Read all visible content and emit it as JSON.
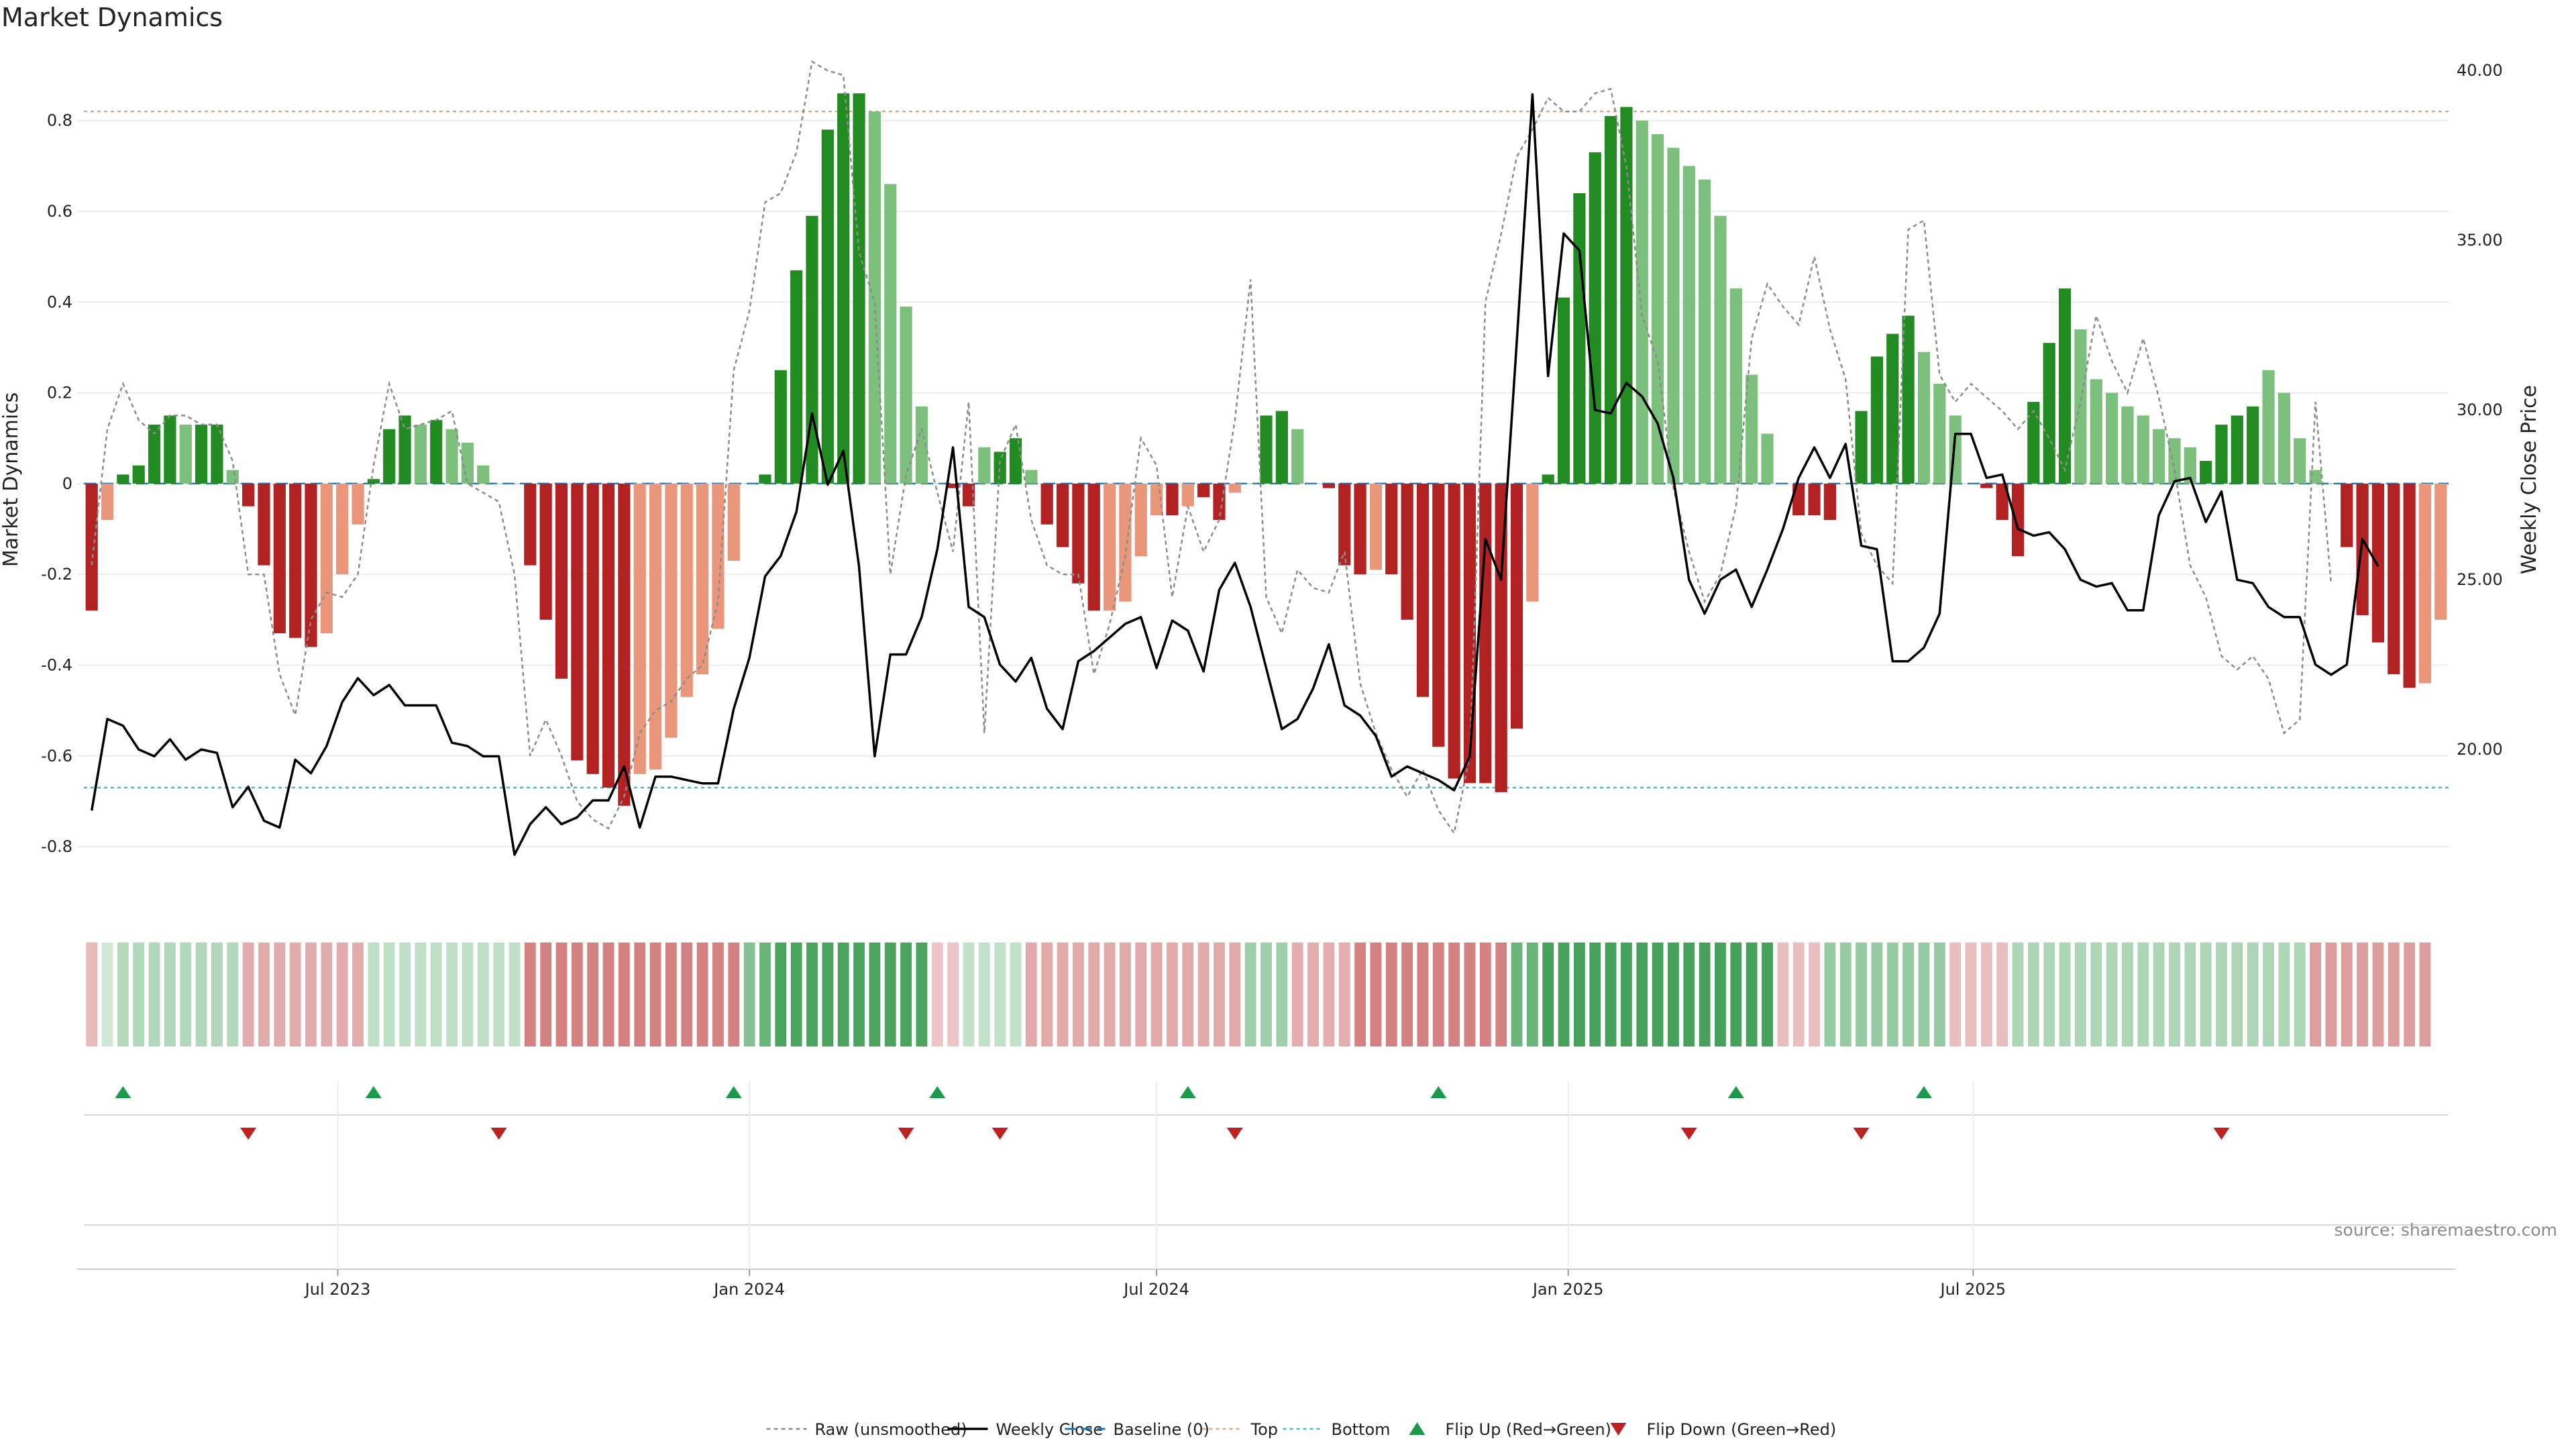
{
  "title": "Market Dynamics",
  "source": "source: sharemaestro.com",
  "colors": {
    "strong_green": "#228B22",
    "light_green": "#7DBF7D",
    "strong_red": "#B22222",
    "light_red": "#E9967A",
    "raw_line": "#8c8c8c",
    "close_line": "#000000",
    "baseline": "#1f77b4",
    "top_line": "#e8a27c",
    "bottom_line": "#40c0c8",
    "flip_up": "#1a9a4a",
    "flip_down": "#c02020"
  },
  "chart_data": {
    "type": "bar+line",
    "x_start": "2023-03-13",
    "interval": "weekly",
    "left_axis": {
      "label": "Market Dynamics",
      "ylim": [
        -0.93,
        0.94
      ],
      "ticks": [
        -0.8,
        -0.6,
        -0.4,
        -0.2,
        0,
        0.2,
        0.4,
        0.6,
        0.8
      ]
    },
    "right_axis": {
      "label": "Weekly Close Price",
      "ylim": [
        15.4,
        40.4
      ],
      "ticks": [
        "20.00",
        "25.00",
        "30.00",
        "35.00",
        "40.00"
      ]
    },
    "x_ticks": [
      "Jul 2023",
      "Jan 2024",
      "Jul 2024",
      "Jan 2025",
      "Jul 2025"
    ],
    "top_level": 0.82,
    "bottom_level": -0.67,
    "baseline_level": 0,
    "bars": [
      -0.28,
      -0.08,
      0.02,
      0.04,
      0.13,
      0.15,
      0.13,
      0.13,
      0.13,
      0.03,
      -0.05,
      -0.18,
      -0.33,
      -0.34,
      -0.36,
      -0.33,
      -0.2,
      -0.09,
      0.01,
      0.12,
      0.15,
      0.13,
      0.14,
      0.12,
      0.09,
      0.04,
      0,
      0,
      -0.18,
      -0.3,
      -0.43,
      -0.61,
      -0.64,
      -0.67,
      -0.71,
      -0.64,
      -0.63,
      -0.56,
      -0.47,
      -0.42,
      -0.32,
      -0.17,
      0,
      0.02,
      0.25,
      0.47,
      0.59,
      0.78,
      0.86,
      0.86,
      0.82,
      0.66,
      0.39,
      0.17,
      0,
      -0.01,
      -0.05,
      0.08,
      0.07,
      0.1,
      0.03,
      -0.09,
      -0.14,
      -0.22,
      -0.28,
      -0.28,
      -0.26,
      -0.16,
      -0.07,
      -0.07,
      -0.05,
      -0.03,
      -0.08,
      -0.02,
      0,
      0.15,
      0.16,
      0.12,
      0,
      -0.01,
      -0.18,
      -0.2,
      -0.19,
      -0.2,
      -0.3,
      -0.47,
      -0.58,
      -0.65,
      -0.66,
      -0.66,
      -0.68,
      -0.54,
      -0.26,
      0.02,
      0.41,
      0.64,
      0.73,
      0.81,
      0.83,
      0.8,
      0.77,
      0.74,
      0.7,
      0.67,
      0.59,
      0.43,
      0.24,
      0.11,
      0,
      -0.07,
      -0.07,
      -0.08,
      0,
      0.16,
      0.28,
      0.33,
      0.37,
      0.29,
      0.22,
      0.15,
      0,
      -0.01,
      -0.08,
      -0.16,
      0.18,
      0.31,
      0.43,
      0.34,
      0.23,
      0.2,
      0.17,
      0.15,
      0.12,
      0.1,
      0.08,
      0.05,
      0.13,
      0.15,
      0.17,
      0.25,
      0.2,
      0.1,
      0.03,
      0,
      -0.14,
      -0.29,
      -0.35,
      -0.42,
      -0.45,
      -0.44,
      -0.3
    ],
    "bar_shades": "1=strong 0=light",
    "bar_strong": [
      1,
      0,
      1,
      1,
      1,
      1,
      0,
      1,
      1,
      0,
      1,
      1,
      1,
      1,
      1,
      0,
      0,
      0,
      1,
      1,
      1,
      0,
      1,
      0,
      0,
      0,
      0,
      0,
      1,
      1,
      1,
      1,
      1,
      1,
      1,
      0,
      0,
      0,
      0,
      0,
      0,
      0,
      0,
      1,
      1,
      1,
      1,
      1,
      1,
      1,
      0,
      0,
      0,
      0,
      0,
      1,
      1,
      0,
      1,
      1,
      0,
      1,
      1,
      1,
      1,
      0,
      0,
      0,
      0,
      1,
      0,
      1,
      1,
      0,
      0,
      1,
      1,
      0,
      0,
      1,
      1,
      1,
      0,
      1,
      1,
      1,
      1,
      1,
      1,
      1,
      1,
      1,
      0,
      1,
      1,
      1,
      1,
      1,
      1,
      0,
      0,
      0,
      0,
      0,
      0,
      0,
      0,
      0,
      0,
      1,
      1,
      1,
      0,
      1,
      1,
      1,
      1,
      0,
      0,
      0,
      0,
      1,
      1,
      1,
      1,
      1,
      1,
      0,
      0,
      0,
      0,
      0,
      0,
      0,
      0,
      1,
      1,
      1,
      1,
      0,
      0,
      0,
      0,
      1,
      1,
      1,
      1,
      1,
      1,
      0
    ],
    "series": [
      {
        "name": "Raw (unsmoothed)",
        "axis": "left",
        "values": [
          -0.18,
          0.12,
          0.22,
          0.14,
          0.11,
          0.15,
          0.15,
          0.13,
          0.13,
          0.05,
          -0.2,
          -0.2,
          -0.42,
          -0.51,
          -0.3,
          -0.24,
          -0.25,
          -0.2,
          0.04,
          0.22,
          0.12,
          0.13,
          0.14,
          0.16,
          0,
          -0.02,
          -0.04,
          -0.2,
          -0.6,
          -0.52,
          -0.6,
          -0.7,
          -0.74,
          -0.76,
          -0.69,
          -0.55,
          -0.5,
          -0.48,
          -0.43,
          -0.4,
          -0.26,
          0.25,
          0.38,
          0.62,
          0.64,
          0.73,
          0.93,
          0.91,
          0.9,
          0.51,
          0.4,
          -0.2,
          0.02,
          0.12,
          -0.02,
          -0.15,
          0.18,
          -0.55,
          0.05,
          0.13,
          -0.08,
          -0.18,
          -0.2,
          -0.2,
          -0.42,
          -0.31,
          -0.16,
          0.1,
          0.04,
          -0.25,
          -0.05,
          -0.15,
          -0.08,
          0.14,
          0.45,
          -0.25,
          -0.33,
          -0.19,
          -0.23,
          -0.24,
          -0.15,
          -0.44,
          -0.55,
          -0.63,
          -0.69,
          -0.63,
          -0.72,
          -0.77,
          -0.6,
          0.4,
          0.55,
          0.72,
          0.78,
          0.85,
          0.82,
          0.82,
          0.86,
          0.87,
          0.7,
          0.37,
          0.27,
          -0.01,
          -0.15,
          -0.26,
          -0.2,
          -0.05,
          0.32,
          0.44,
          0.39,
          0.35,
          0.5,
          0.34,
          0.23,
          -0.11,
          -0.18,
          -0.22,
          0.56,
          0.58,
          0.24,
          0.18,
          0.22,
          0.19,
          0.16,
          0.12,
          0.16,
          0.1,
          0.03,
          0.18,
          0.37,
          0.27,
          0.2,
          0.32,
          0.19,
          0.03,
          -0.18,
          -0.25,
          -0.38,
          -0.41,
          -0.38,
          -0.43,
          -0.55,
          -0.52,
          0.18,
          -0.22
        ]
      },
      {
        "name": "Weekly Close",
        "axis": "right",
        "values": [
          18.2,
          20.9,
          20.7,
          20.0,
          19.8,
          20.3,
          19.7,
          20.0,
          19.9,
          18.3,
          18.9,
          17.9,
          17.7,
          19.7,
          19.3,
          20.1,
          21.4,
          22.1,
          21.6,
          21.9,
          21.3,
          21.3,
          21.3,
          20.2,
          20.1,
          19.8,
          19.8,
          16.9,
          17.8,
          18.3,
          17.8,
          18.0,
          18.5,
          18.5,
          19.5,
          17.7,
          19.2,
          19.2,
          19.1,
          19.0,
          19.0,
          21.2,
          22.7,
          25.1,
          25.7,
          27.0,
          29.9,
          27.8,
          28.8,
          25.4,
          19.8,
          22.8,
          22.8,
          23.9,
          25.9,
          28.9,
          24.2,
          23.9,
          22.5,
          22.0,
          22.7,
          21.2,
          20.6,
          22.6,
          22.9,
          23.3,
          23.7,
          23.9,
          22.4,
          23.8,
          23.5,
          22.3,
          24.7,
          25.5,
          24.2,
          22.4,
          20.6,
          20.9,
          21.8,
          23.1,
          21.3,
          21.0,
          20.4,
          19.2,
          19.5,
          19.3,
          19.1,
          18.8,
          19.8,
          26.2,
          25.0,
          32.0,
          39.3,
          31.0,
          35.2,
          34.7,
          30.0,
          29.9,
          30.8,
          30.4,
          29.6,
          28.0,
          25.0,
          24.0,
          25.0,
          25.3,
          24.2,
          25.3,
          26.5,
          28.0,
          28.9,
          28.0,
          29.0,
          26.0,
          25.9,
          22.6,
          22.6,
          23.0,
          24.0,
          29.3,
          29.3,
          28.0,
          28.1,
          26.5,
          26.3,
          26.4,
          25.9,
          25.0,
          24.8,
          24.9,
          24.1,
          24.1,
          26.9,
          27.9,
          28.0,
          26.7,
          27.6,
          25.0,
          24.9,
          24.2,
          23.9,
          23.9,
          22.5,
          22.2,
          22.5,
          26.2,
          25.4
        ]
      }
    ],
    "heat_strip": [
      -0.28,
      0.12,
      0.28,
      0.3,
      0.3,
      0.3,
      0.3,
      0.3,
      0.3,
      0.3,
      -0.36,
      -0.36,
      -0.36,
      -0.36,
      -0.36,
      -0.36,
      -0.36,
      -0.36,
      0.22,
      0.22,
      0.22,
      0.22,
      0.22,
      0.22,
      0.22,
      0.22,
      0.22,
      0.22,
      -0.62,
      -0.62,
      -0.62,
      -0.62,
      -0.62,
      -0.62,
      -0.62,
      -0.62,
      -0.62,
      -0.62,
      -0.62,
      -0.62,
      -0.62,
      -0.62,
      0.55,
      0.7,
      0.88,
      0.88,
      0.88,
      0.88,
      0.88,
      0.88,
      0.88,
      0.88,
      0.88,
      0.88,
      -0.2,
      -0.2,
      0.2,
      0.2,
      0.2,
      0.2,
      -0.38,
      -0.38,
      -0.38,
      -0.38,
      -0.38,
      -0.38,
      -0.38,
      -0.38,
      -0.38,
      -0.38,
      -0.38,
      -0.38,
      -0.38,
      -0.38,
      0.4,
      0.4,
      0.4,
      -0.35,
      -0.35,
      -0.35,
      -0.35,
      -0.62,
      -0.62,
      -0.62,
      -0.62,
      -0.62,
      -0.62,
      -0.62,
      -0.62,
      -0.62,
      -0.62,
      0.7,
      0.7,
      0.9,
      0.9,
      0.9,
      0.9,
      0.9,
      0.9,
      0.9,
      0.9,
      0.9,
      0.9,
      0.9,
      0.9,
      0.9,
      0.9,
      0.9,
      -0.25,
      -0.25,
      -0.25,
      0.45,
      0.45,
      0.45,
      0.45,
      0.45,
      0.45,
      0.45,
      0.45,
      -0.25,
      -0.25,
      -0.25,
      -0.25,
      0.32,
      0.32,
      0.32,
      0.32,
      0.32,
      0.32,
      0.32,
      0.32,
      0.32,
      0.32,
      0.32,
      0.32,
      0.32,
      0.32,
      0.32,
      0.32,
      0.32,
      0.32,
      0.32,
      -0.45,
      -0.45,
      -0.45,
      -0.45,
      -0.45,
      -0.45,
      -0.45,
      -0.45
    ],
    "flip_up_weeks": [
      2,
      18,
      41,
      54,
      70,
      86,
      105,
      117
    ],
    "flip_down_weeks": [
      10,
      26,
      52,
      58,
      73,
      102,
      113,
      136
    ],
    "legend": {
      "placement": "bottom-center",
      "entries": [
        "Raw (unsmoothed)",
        "Weekly Close",
        "Baseline (0)",
        "Top",
        "Bottom",
        "Flip Up (Red→Green)",
        "Flip Down (Green→Red)"
      ]
    }
  }
}
